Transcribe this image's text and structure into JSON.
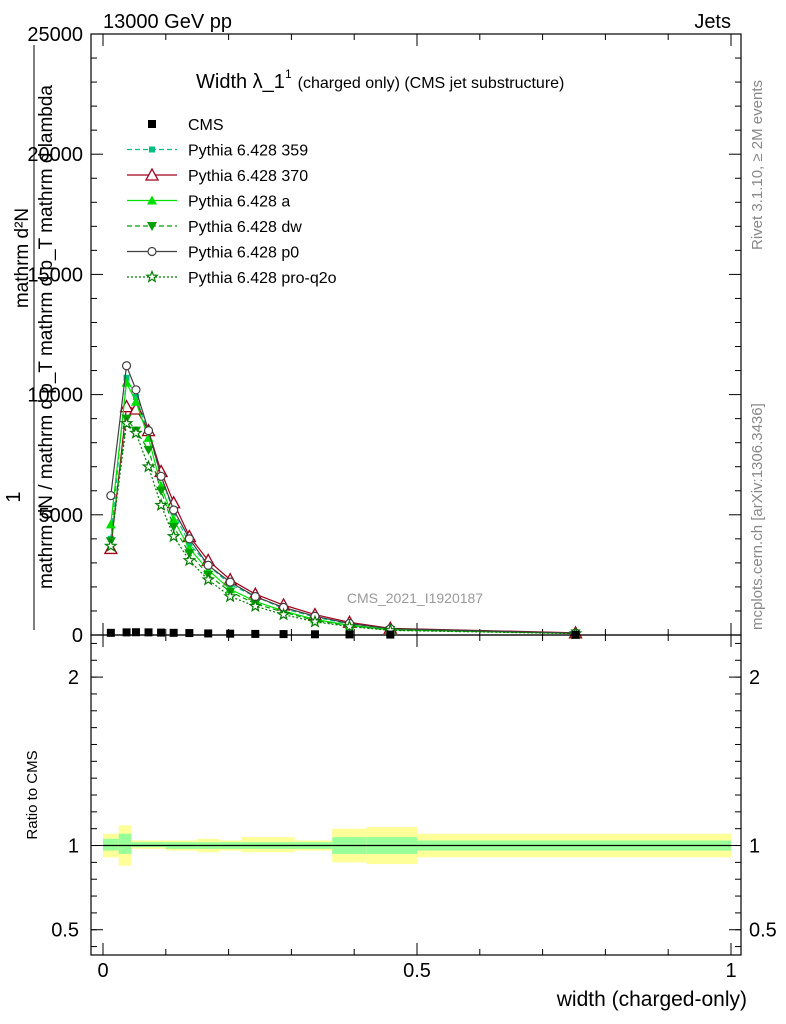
{
  "header": {
    "left": "13000 GeV pp",
    "right": "Jets"
  },
  "side_labels": {
    "rivet": "Rivet 3.1.10, ≥ 2M events",
    "mcplots": "mcplots.cern.ch [arXiv:1306.3436]"
  },
  "watermark": "CMS_2021_I1920187",
  "colors": {
    "cms": "#000000",
    "p359": "#00c080",
    "p370": "#a0001a",
    "pa": "#00e000",
    "pdw": "#00a000",
    "pp0": "#404040",
    "pq2o": "#007a00",
    "band_outer": "#ffff99",
    "band_inner": "#99ff99"
  },
  "chart_data": [
    {
      "type": "line",
      "panel": "main",
      "title_main": "Width λ_1",
      "title_sup": "1",
      "title_suffix": "(charged only) (CMS jet substructure)",
      "ylabel_top": "1",
      "ylabel_num": "mathrm d²N",
      "ylabel_den": "mathrm dN / mathrm d p_T mathrm d p_T mathrm d lambda",
      "xlim": [
        0,
        1
      ],
      "ylim": [
        0,
        25000
      ],
      "yticks": [
        0,
        5000,
        10000,
        15000,
        20000,
        25000
      ],
      "ytick_labels": [
        "0",
        "5000",
        "10000",
        "15000",
        "20000",
        "25000"
      ],
      "legend_position": "top-left",
      "series": [
        {
          "name": "CMS",
          "key": "cms",
          "marker": "square",
          "x": [
            0.0125,
            0.0375,
            0.0525,
            0.0725,
            0.0925,
            0.1125,
            0.1375,
            0.1675,
            0.2025,
            0.2425,
            0.2875,
            0.3375,
            0.3925,
            0.4575,
            0.7525
          ],
          "y": [
            90,
            110,
            115,
            110,
            100,
            90,
            80,
            65,
            55,
            45,
            38,
            30,
            25,
            18,
            6
          ]
        },
        {
          "name": "Pythia 6.428 359",
          "key": "p359",
          "marker": "small-square",
          "dash": "dashed",
          "x": [
            0.0125,
            0.0375,
            0.0525,
            0.0725,
            0.0925,
            0.1125,
            0.1375,
            0.1675,
            0.2025,
            0.2425,
            0.2875,
            0.3375,
            0.3925,
            0.4575,
            0.7525
          ],
          "y": [
            4000,
            10700,
            9900,
            8400,
            6600,
            5100,
            3800,
            2900,
            2100,
            1600,
            1100,
            750,
            450,
            250,
            80
          ]
        },
        {
          "name": "Pythia 6.428 370",
          "key": "p370",
          "marker": "open-triangle",
          "dash": "solid",
          "x": [
            0.0125,
            0.0375,
            0.0525,
            0.0725,
            0.0925,
            0.1125,
            0.1375,
            0.1675,
            0.2025,
            0.2425,
            0.2875,
            0.3375,
            0.3925,
            0.4575,
            0.7525
          ],
          "y": [
            3600,
            9500,
            9400,
            8500,
            6800,
            5500,
            4100,
            3100,
            2300,
            1700,
            1250,
            850,
            530,
            280,
            90
          ]
        },
        {
          "name": "Pythia 6.428 a",
          "key": "pa",
          "marker": "filled-triangle",
          "dash": "solid",
          "x": [
            0.0125,
            0.0375,
            0.0525,
            0.0725,
            0.0925,
            0.1125,
            0.1375,
            0.1675,
            0.2025,
            0.2425,
            0.2875,
            0.3375,
            0.3925,
            0.4575,
            0.7525
          ],
          "y": [
            4600,
            10500,
            9700,
            8200,
            6200,
            4800,
            3600,
            2700,
            1900,
            1400,
            1000,
            650,
            400,
            220,
            70
          ]
        },
        {
          "name": "Pythia 6.428 dw",
          "key": "pdw",
          "marker": "filled-triangle-down",
          "dash": "dashed",
          "x": [
            0.0125,
            0.0375,
            0.0525,
            0.0725,
            0.0925,
            0.1125,
            0.1375,
            0.1675,
            0.2025,
            0.2425,
            0.2875,
            0.3375,
            0.3925,
            0.4575,
            0.7525
          ],
          "y": [
            3900,
            9000,
            8500,
            7700,
            6000,
            4500,
            3400,
            2500,
            1800,
            1300,
            950,
            600,
            380,
            210,
            70
          ]
        },
        {
          "name": "Pythia 6.428 p0",
          "key": "pp0",
          "marker": "open-circle",
          "dash": "solid",
          "x": [
            0.0125,
            0.0375,
            0.0525,
            0.0725,
            0.0925,
            0.1125,
            0.1375,
            0.1675,
            0.2025,
            0.2425,
            0.2875,
            0.3375,
            0.3925,
            0.4575,
            0.7525
          ],
          "y": [
            5800,
            11200,
            10200,
            8500,
            6600,
            5200,
            4000,
            2900,
            2200,
            1600,
            1150,
            780,
            480,
            260,
            80
          ]
        },
        {
          "name": "Pythia 6.428 pro-q2o",
          "key": "pq2o",
          "marker": "star",
          "dash": "dotted",
          "x": [
            0.0125,
            0.0375,
            0.0525,
            0.0725,
            0.0925,
            0.1125,
            0.1375,
            0.1675,
            0.2025,
            0.2425,
            0.2875,
            0.3375,
            0.3925,
            0.4575,
            0.7525
          ],
          "y": [
            3700,
            8800,
            8400,
            7000,
            5400,
            4100,
            3100,
            2300,
            1600,
            1200,
            850,
            550,
            350,
            190,
            60
          ]
        }
      ]
    },
    {
      "type": "area",
      "panel": "ratio",
      "ylabel": "Ratio to CMS",
      "xlabel": "width (charged-only)",
      "xlim": [
        0,
        1
      ],
      "ylim": [
        0.35,
        2.25
      ],
      "yticks": [
        0.5,
        1,
        2
      ],
      "ytick_labels": [
        "0.5",
        "1",
        "2"
      ],
      "xticks": [
        0,
        0.5,
        1
      ],
      "xtick_labels": [
        "0",
        "0.5",
        "1"
      ],
      "bins": [
        {
          "lo": 0.0,
          "hi": 0.025,
          "outer": [
            0.93,
            1.07
          ],
          "inner": [
            0.97,
            1.04
          ]
        },
        {
          "lo": 0.025,
          "hi": 0.045,
          "outer": [
            0.88,
            1.12
          ],
          "inner": [
            0.95,
            1.07
          ]
        },
        {
          "lo": 0.045,
          "hi": 0.1,
          "outer": [
            0.98,
            1.03
          ],
          "inner": [
            0.99,
            1.02
          ]
        },
        {
          "lo": 0.1,
          "hi": 0.15,
          "outer": [
            0.97,
            1.03
          ],
          "inner": [
            0.98,
            1.02
          ]
        },
        {
          "lo": 0.15,
          "hi": 0.185,
          "outer": [
            0.96,
            1.04
          ],
          "inner": [
            0.98,
            1.02
          ]
        },
        {
          "lo": 0.185,
          "hi": 0.22,
          "outer": [
            0.97,
            1.03
          ],
          "inner": [
            0.98,
            1.02
          ]
        },
        {
          "lo": 0.22,
          "hi": 0.305,
          "outer": [
            0.96,
            1.05
          ],
          "inner": [
            0.98,
            1.02
          ]
        },
        {
          "lo": 0.305,
          "hi": 0.365,
          "outer": [
            0.97,
            1.03
          ],
          "inner": [
            0.98,
            1.02
          ]
        },
        {
          "lo": 0.365,
          "hi": 0.42,
          "outer": [
            0.9,
            1.1
          ],
          "inner": [
            0.95,
            1.05
          ]
        },
        {
          "lo": 0.42,
          "hi": 0.5,
          "outer": [
            0.89,
            1.11
          ],
          "inner": [
            0.95,
            1.05
          ]
        },
        {
          "lo": 0.5,
          "hi": 1.0,
          "outer": [
            0.93,
            1.07
          ],
          "inner": [
            0.97,
            1.03
          ]
        }
      ]
    }
  ]
}
